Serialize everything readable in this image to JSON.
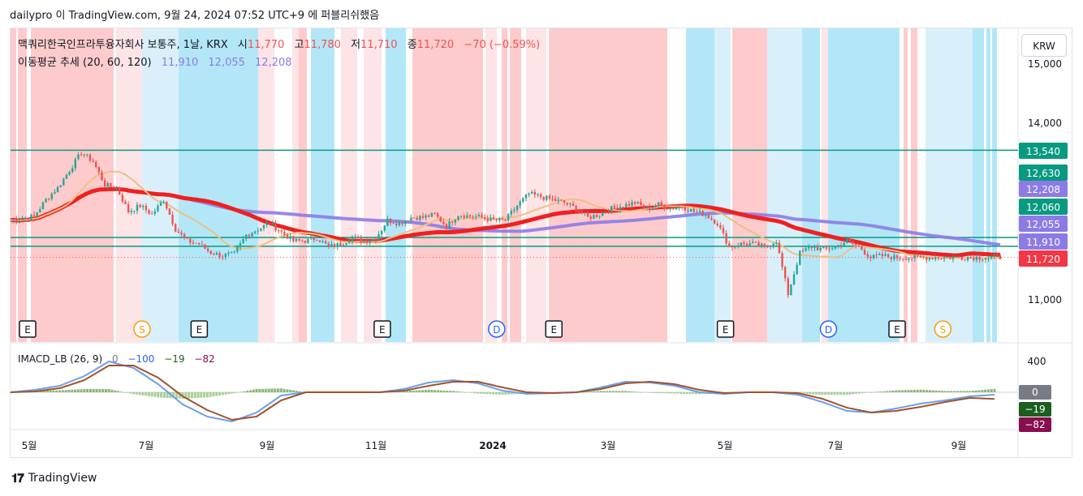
{
  "caption": "dailypro 이 TradingView.com, 9월 24, 2024 07:52 UTC+9 에 퍼블리쉬했음",
  "currency": "KRW",
  "brand": "TradingView",
  "legend": {
    "symbol": "맥쿼리한국인프라투융자회사 보통주, 1날, KRX",
    "o_label": "시",
    "o": "11,770",
    "h_label": "고",
    "h": "11,780",
    "l_label": "저",
    "l": "11,710",
    "c_label": "종",
    "c": "11,720",
    "chg": "−70 (−0.59%)",
    "ma_name": "이동평균 추세 (20, 60, 120)",
    "ma20": "11,910",
    "ma60": "12,055",
    "ma120": "12,208",
    "macd_name": "IMACD_LB (26, 9)",
    "macd_v1": "0",
    "macd_v2": "−100",
    "macd_v3": "−19",
    "macd_v4": "−82"
  },
  "colors": {
    "up": "#26a69a",
    "down": "#ef5350",
    "pink": "#fecbcc",
    "pink_light": "#fde4e6",
    "blue": "#b3e7f8",
    "blue_light": "#d9f0fb",
    "hline": "#089981",
    "ma20": "#ef2020",
    "ma60": "#8c7be6",
    "ma120": "#ecc182"
  },
  "chart_data": [
    {
      "type": "candlestick",
      "title": "맥쿼리한국인프라투융자회사 보통주, 1날, KRX",
      "x_labels": [
        "5월",
        "7월",
        "9월",
        "11월",
        "2024",
        "3월",
        "5월",
        "7월",
        "9월"
      ],
      "y_ticks": [
        "11,000",
        "14,000",
        "15,000"
      ],
      "ylim": [
        10700,
        15200
      ],
      "horizontal_lines": [
        13540,
        12060,
        11910
      ],
      "price_labels": [
        {
          "text": "13,540",
          "kind": "hline"
        },
        {
          "text": "12,630",
          "kind": "hline"
        },
        {
          "text": "12,208",
          "kind": "ma120"
        },
        {
          "text": "12,060",
          "kind": "hline"
        },
        {
          "text": "12,055",
          "kind": "ma60"
        },
        {
          "text": "11,910",
          "kind": "ma20"
        },
        {
          "text": "11,720",
          "kind": "last"
        }
      ],
      "series": [
        {
          "name": "종가",
          "x": [
            0,
            4,
            8,
            12,
            16,
            20,
            24,
            28,
            32,
            36,
            40,
            44,
            48,
            52,
            56,
            60,
            64,
            68,
            72,
            76,
            80,
            84,
            88,
            92,
            96,
            100,
            104,
            108,
            112,
            116,
            120,
            124,
            128,
            132,
            136,
            140,
            144,
            148,
            152,
            156,
            160,
            164,
            168,
            172,
            176,
            180,
            184,
            188,
            192,
            196,
            200,
            204,
            208,
            212,
            216,
            220,
            224,
            228,
            232,
            236,
            240,
            244,
            248,
            252,
            256,
            260,
            264,
            268,
            272,
            276,
            280,
            284,
            288,
            292,
            296,
            300,
            304,
            308,
            312,
            316,
            320,
            324,
            328,
            332,
            336
          ],
          "values": [
            12350,
            12380,
            12420,
            12700,
            12900,
            13200,
            13500,
            13350,
            12950,
            12900,
            12500,
            12600,
            12450,
            12700,
            12200,
            12000,
            11950,
            11800,
            11750,
            11780,
            12100,
            12200,
            12300,
            12150,
            12000,
            12000,
            12050,
            11900,
            11950,
            12050,
            12000,
            12050,
            12350,
            12300,
            12400,
            12400,
            12450,
            12250,
            12450,
            12420,
            12400,
            12350,
            12350,
            12600,
            12800,
            12750,
            12700,
            12650,
            12550,
            12400,
            12450,
            12550,
            12600,
            12650,
            12550,
            12620,
            12550,
            12580,
            12500,
            12450,
            12300,
            11900,
            11950,
            11950,
            11900,
            12000,
            11100,
            11800,
            11900,
            11850,
            11900,
            12000,
            11900,
            11720,
            11750,
            11720,
            11720,
            11720,
            11720,
            11720,
            11720,
            11720,
            11720,
            11720,
            11720
          ]
        }
      ],
      "indicators": [
        "이동평균 추세 (20, 60, 120)"
      ],
      "markers": [
        {
          "text": "E",
          "x": 0
        },
        {
          "text": "S",
          "x": 40
        },
        {
          "text": "E",
          "x": 60
        },
        {
          "text": "E",
          "x": 124
        },
        {
          "text": "D",
          "x": 164
        },
        {
          "text": "E",
          "x": 184
        },
        {
          "text": "E",
          "x": 244
        },
        {
          "text": "D",
          "x": 280
        },
        {
          "text": "E",
          "x": 304
        },
        {
          "text": "S",
          "x": 320
        }
      ]
    },
    {
      "type": "line",
      "title": "IMACD_LB (26, 9)",
      "y_ticks": [
        "400"
      ],
      "price_labels": [
        "0",
        "−19",
        "−82"
      ],
      "series": [
        {
          "name": "MACD",
          "values": [
            0,
            30,
            80,
            200,
            380,
            300,
            100,
            -150,
            -300,
            -360,
            -250,
            -40,
            0,
            0,
            0,
            0,
            40,
            120,
            150,
            110,
            20,
            -20,
            -10,
            0,
            60,
            130,
            120,
            80,
            0,
            -20,
            0,
            0,
            -30,
            -120,
            -230,
            -250,
            -200,
            -140,
            -100,
            -50,
            -30
          ]
        },
        {
          "name": "Signal",
          "values": [
            0,
            10,
            50,
            150,
            330,
            330,
            180,
            -50,
            -220,
            -340,
            -300,
            -100,
            0,
            0,
            0,
            0,
            20,
            80,
            130,
            130,
            60,
            0,
            -10,
            0,
            40,
            110,
            130,
            100,
            30,
            -10,
            0,
            0,
            -10,
            -80,
            -190,
            -250,
            -230,
            -180,
            -120,
            -70,
            -82
          ]
        }
      ]
    }
  ]
}
